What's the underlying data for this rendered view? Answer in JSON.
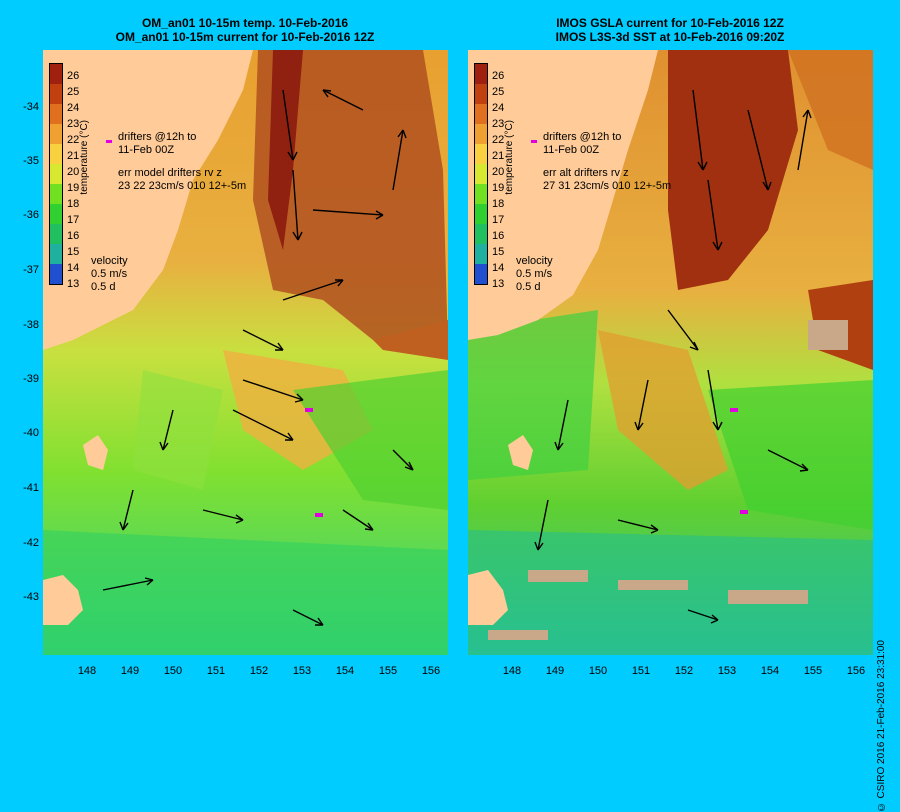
{
  "panels": {
    "left": {
      "title_line1": "OM_an01 10-15m temp. 10-Feb-2016",
      "title_line2": "OM_an01 10-15m current for 10-Feb-2016 12Z",
      "drifters_line1": "drifters @12h to",
      "drifters_line2": "11-Feb 00Z",
      "err_line1": "err model drifters rv z",
      "err_line2": "23 22 23cm/s 010 12+-5m"
    },
    "right": {
      "title_line1": "IMOS GSLA current for 10-Feb-2016 12Z",
      "title_line2": "IMOS L3S-3d SST at 10-Feb-2016 09:20Z",
      "drifters_line1": "drifters @12h to",
      "drifters_line2": "11-Feb 00Z",
      "err_line1": "err alt drifters rv z",
      "err_line2": "27 31 23cm/s 010 12+-5m"
    }
  },
  "colorbar": {
    "label": "temperature (°C)",
    "ticks": [
      "26",
      "25",
      "24",
      "23",
      "22",
      "21",
      "20",
      "19",
      "18",
      "17",
      "16",
      "15",
      "14",
      "13"
    ],
    "colors": [
      "#a02010",
      "#c04010",
      "#e07020",
      "#f0a030",
      "#f8d040",
      "#d8e830",
      "#70e020",
      "#30d030",
      "#20c060",
      "#20b0a0",
      "#2090d0",
      "#2050d0",
      "#2030a0"
    ]
  },
  "velocity": {
    "label": "velocity",
    "speed": "0.5 m/s",
    "time": "0.5 d"
  },
  "latitudes": [
    "-34",
    "-35",
    "-36",
    "-37",
    "-38",
    "-39",
    "-40",
    "-41",
    "-42",
    "-43"
  ],
  "longitudes": [
    "148",
    "149",
    "150",
    "151",
    "152",
    "153",
    "154",
    "155",
    "156"
  ],
  "credit": "© CSIRO 2016   21-Feb-2016 23:31:00",
  "colors": {
    "land": "#ffcc99",
    "background": "#00ccff",
    "drifter": "#e000e0"
  }
}
